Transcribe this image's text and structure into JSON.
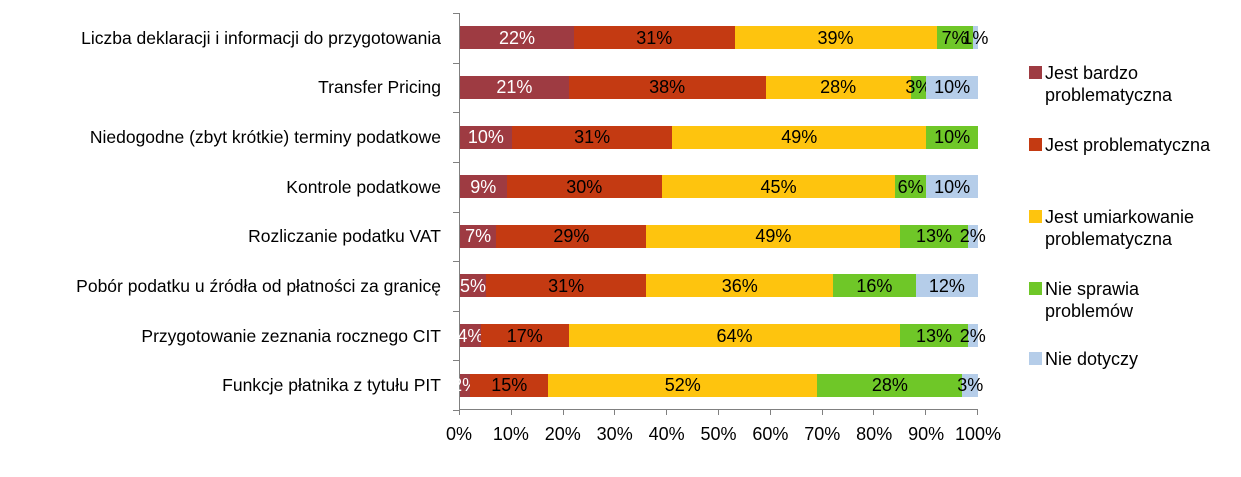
{
  "chart_data": {
    "type": "bar",
    "stacked": true,
    "orientation": "horizontal",
    "title": "",
    "xlabel": "",
    "ylabel": "",
    "xlim": [
      0,
      100
    ],
    "grid": false,
    "legend_position": "right",
    "value_suffix": "%",
    "axis_color": "#808080",
    "categories": [
      "Liczba deklaracji i informacji do przygotowania",
      "Transfer Pricing",
      "Niedogodne (zbyt krótkie) terminy podatkowe",
      "Kontrole podatkowe",
      "Rozliczanie podatku VAT",
      "Pobór podatku u źródła od płatności za granicę",
      "Przygotowanie zeznania rocznego CIT",
      "Funkcje płatnika z tytułu PIT"
    ],
    "series": [
      {
        "name": "Jest bardzo problematyczna",
        "legend_lines": [
          "Jest bardzo",
          "problematyczna"
        ],
        "color": "#9E3B42",
        "label_text_color": "#FFFFFF",
        "values": [
          22,
          21,
          10,
          9,
          7,
          5,
          4,
          2
        ]
      },
      {
        "name": "Jest problematyczna",
        "legend_lines": [
          "Jest problematyczna"
        ],
        "color": "#C43A12",
        "label_text_color": "#000000",
        "values": [
          31,
          38,
          31,
          30,
          29,
          31,
          17,
          15
        ]
      },
      {
        "name": "Jest umiarkowanie problematyczna",
        "legend_lines": [
          "Jest umiarkowanie",
          "problematyczna"
        ],
        "color": "#FEC40E",
        "label_text_color": "#000000",
        "values": [
          39,
          28,
          49,
          45,
          49,
          36,
          64,
          52
        ]
      },
      {
        "name": "Nie sprawia problemów",
        "legend_lines": [
          "Nie sprawia",
          "problemów"
        ],
        "color": "#6FC728",
        "label_text_color": "#000000",
        "values": [
          7,
          3,
          10,
          6,
          13,
          16,
          13,
          28
        ]
      },
      {
        "name": "Nie dotyczy",
        "legend_lines": [
          "Nie dotyczy"
        ],
        "color": "#B5CDE9",
        "label_text_color": "#000000",
        "values": [
          1,
          10,
          0,
          10,
          2,
          12,
          2,
          3
        ]
      }
    ],
    "x_ticks": [
      "0%",
      "10%",
      "20%",
      "30%",
      "40%",
      "50%",
      "60%",
      "70%",
      "80%",
      "90%",
      "100%"
    ]
  }
}
